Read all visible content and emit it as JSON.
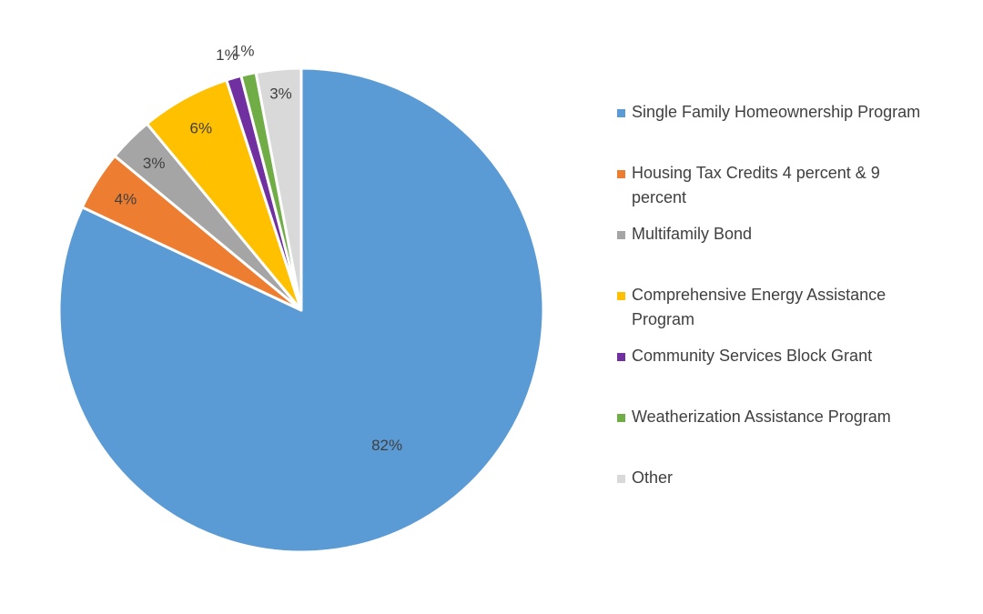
{
  "chart_data": {
    "type": "pie",
    "title": "",
    "legend_position": "right",
    "slices": [
      {
        "name": "Single Family Homeownership Program",
        "value": 82,
        "label": "82%",
        "color": "#5B9BD5"
      },
      {
        "name": "Housing Tax Credits 4 percent & 9 percent",
        "value": 4,
        "label": "4%",
        "color": "#ED7D31"
      },
      {
        "name": "Multifamily Bond",
        "value": 3,
        "label": "3%",
        "color": "#A5A5A5"
      },
      {
        "name": "Comprehensive Energy Assistance Program",
        "value": 6,
        "label": "6%",
        "color": "#FFC000"
      },
      {
        "name": "Community Services Block Grant",
        "value": 1,
        "label": "1%",
        "color": "#7030A0"
      },
      {
        "name": "Weatherization Assistance Program",
        "value": 1,
        "label": "1%",
        "color": "#70AD47"
      },
      {
        "name": "Other",
        "value": 3,
        "label": "3%",
        "color": "#D9D9D9"
      }
    ]
  }
}
